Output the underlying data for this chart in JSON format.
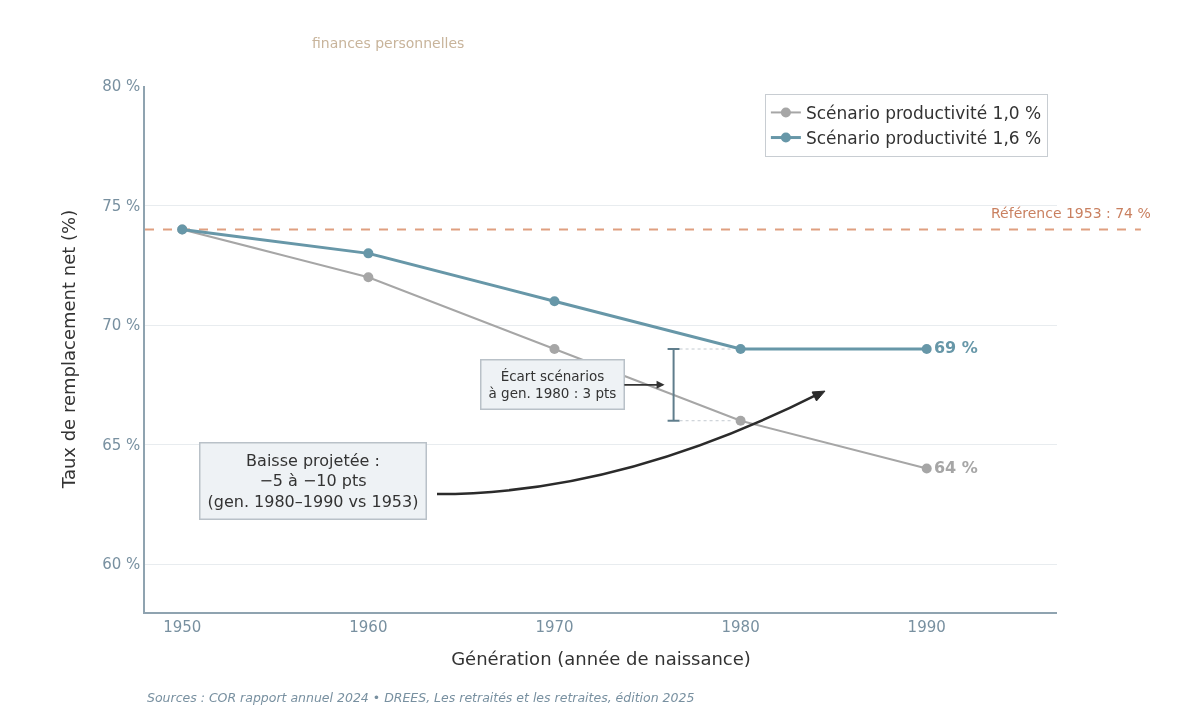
{
  "chart_data": {
    "type": "line",
    "subtitle": "finances personnelles",
    "xlabel": "Génération (année de naissance)",
    "ylabel": "Taux de remplacement net (%)",
    "x": [
      1950,
      1960,
      1970,
      1980,
      1990
    ],
    "series": [
      {
        "name": "Scénario productivité 1,0 %",
        "color": "#a6a6a6",
        "values": [
          74,
          72,
          69,
          66,
          64
        ],
        "value_labels": [
          null,
          null,
          null,
          null,
          "64 %"
        ]
      },
      {
        "name": "Scénario productivité 1,6 %",
        "color": "#6797a8",
        "values": [
          74,
          73,
          71,
          69,
          69
        ],
        "value_labels": [
          null,
          null,
          null,
          null,
          "69 %"
        ]
      }
    ],
    "xlim": [
      1948,
      1997
    ],
    "xticks": [
      1950,
      1960,
      1970,
      1980,
      1990
    ],
    "ylim": [
      58,
      80
    ],
    "yticks": [
      {
        "value": 60,
        "label": "60 %"
      },
      {
        "value": 65,
        "label": "65 %"
      },
      {
        "value": 70,
        "label": "70 %"
      },
      {
        "value": 75,
        "label": "75 %"
      },
      {
        "value": 80,
        "label": "80 %"
      }
    ],
    "ref_lines": [
      {
        "axis": "y",
        "value": 74,
        "label": "Référence 1953 : 74 %",
        "color": "#df9f80",
        "line_style": "dashed"
      }
    ],
    "annotations": [
      "Écart scénarios\nà gen. 1980 : 3 pts",
      "Baisse projetée :\n−5 à −10 pts\n(gen. 1980–1990 vs 1953)",
      "Sources : COR rapport annuel 2024 • DREES, Les retraités et les retraites, édition 2025"
    ],
    "grid": "y",
    "legend": "top right",
    "marker": "circle",
    "line_style": "solid"
  }
}
